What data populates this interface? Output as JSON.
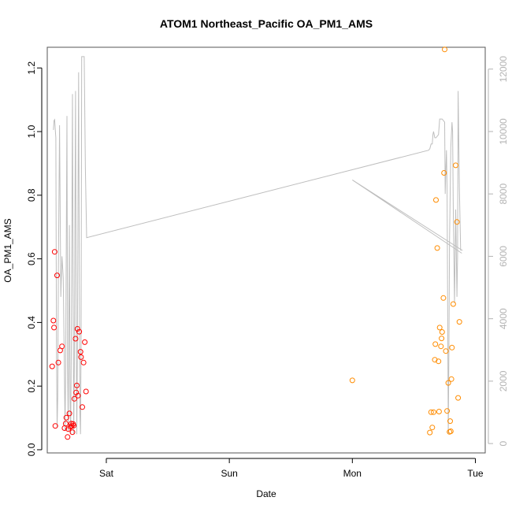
{
  "chart_data": {
    "type": "scatter",
    "title": "ATOM1 Northeast_Pacific OA_PM1_AMS",
    "xlabel": "Date",
    "ylabel": "OA_PM1_AMS",
    "x_ticks": [
      "Sat",
      "Sun",
      "Mon",
      "Tue"
    ],
    "x_tick_values": [
      1,
      2,
      3,
      4
    ],
    "xlim": [
      0.52,
      4.08
    ],
    "ylim": [
      -0.01,
      1.265
    ],
    "y_ticks": [
      0.0,
      0.2,
      0.4,
      0.6,
      0.8,
      1.0,
      1.2
    ],
    "y_tick_labels": [
      "0.0",
      "0.2",
      "0.4",
      "0.6",
      "0.8",
      "1.0",
      "1.2"
    ],
    "y2_ticks": [
      0,
      2000,
      4000,
      6000,
      8000,
      10000,
      12000
    ],
    "y2_tick_labels": [
      "0",
      "2000",
      "4000",
      "6000",
      "8000",
      "10000",
      "12000"
    ],
    "y2_lim": [
      -300,
      12700
    ],
    "grid": false,
    "colors": {
      "series1": "#ff0000",
      "series2": "#ff8c00",
      "altitude": "#bebebe",
      "frame": "#555555"
    },
    "series": [
      {
        "color": "#ff0000",
        "points": [
          [
            0.56,
            0.262
          ],
          [
            0.57,
            0.406
          ],
          [
            0.575,
            0.384
          ],
          [
            0.58,
            0.622
          ],
          [
            0.585,
            0.075
          ],
          [
            0.6,
            0.548
          ],
          [
            0.61,
            0.274
          ],
          [
            0.625,
            0.312
          ],
          [
            0.64,
            0.325
          ],
          [
            0.66,
            0.068
          ],
          [
            0.67,
            0.082
          ],
          [
            0.675,
            0.101
          ],
          [
            0.685,
            0.04
          ],
          [
            0.69,
            0.065
          ],
          [
            0.7,
            0.114
          ],
          [
            0.71,
            0.072
          ],
          [
            0.715,
            0.082
          ],
          [
            0.72,
            0.075
          ],
          [
            0.725,
            0.055
          ],
          [
            0.73,
            0.081
          ],
          [
            0.735,
            0.076
          ],
          [
            0.74,
            0.16
          ],
          [
            0.75,
            0.349
          ],
          [
            0.755,
            0.18
          ],
          [
            0.76,
            0.202
          ],
          [
            0.765,
            0.38
          ],
          [
            0.77,
            0.17
          ],
          [
            0.78,
            0.371
          ],
          [
            0.79,
            0.308
          ],
          [
            0.795,
            0.291
          ],
          [
            0.805,
            0.134
          ],
          [
            0.815,
            0.274
          ],
          [
            0.825,
            0.338
          ],
          [
            0.835,
            0.183
          ]
        ]
      },
      {
        "color": "#ff8c00",
        "points": [
          [
            3.0,
            0.218
          ],
          [
            3.63,
            0.054
          ],
          [
            3.64,
            0.118
          ],
          [
            3.65,
            0.07
          ],
          [
            3.66,
            0.118
          ],
          [
            3.67,
            0.283
          ],
          [
            3.675,
            0.332
          ],
          [
            3.68,
            0.785
          ],
          [
            3.69,
            0.634
          ],
          [
            3.7,
            0.278
          ],
          [
            3.705,
            0.12
          ],
          [
            3.71,
            0.384
          ],
          [
            3.72,
            0.325
          ],
          [
            3.725,
            0.35
          ],
          [
            3.73,
            0.37
          ],
          [
            3.74,
            0.477
          ],
          [
            3.745,
            0.87
          ],
          [
            3.75,
            1.258
          ],
          [
            3.76,
            0.31
          ],
          [
            3.77,
            0.122
          ],
          [
            3.78,
            0.21
          ],
          [
            3.79,
            0.056
          ],
          [
            3.795,
            0.09
          ],
          [
            3.8,
            0.058
          ],
          [
            3.805,
            0.222
          ],
          [
            3.81,
            0.321
          ],
          [
            3.82,
            0.458
          ],
          [
            3.84,
            0.894
          ],
          [
            3.85,
            0.716
          ],
          [
            3.86,
            0.163
          ],
          [
            3.87,
            0.402
          ]
        ]
      }
    ],
    "altitude_line": [
      [
        0.57,
        10050
      ],
      [
        0.575,
        10350
      ],
      [
        0.58,
        10380
      ],
      [
        0.585,
        10050
      ],
      [
        0.59,
        9800
      ],
      [
        0.595,
        3000
      ],
      [
        0.6,
        500
      ],
      [
        0.605,
        1500
      ],
      [
        0.61,
        5500
      ],
      [
        0.62,
        10200
      ],
      [
        0.63,
        4700
      ],
      [
        0.64,
        6000
      ],
      [
        0.65,
        5300
      ],
      [
        0.66,
        2000
      ],
      [
        0.665,
        400
      ],
      [
        0.67,
        2500
      ],
      [
        0.675,
        6600
      ],
      [
        0.68,
        10500
      ],
      [
        0.685,
        2500
      ],
      [
        0.69,
        400
      ],
      [
        0.695,
        3500
      ],
      [
        0.7,
        7000
      ],
      [
        0.705,
        1500
      ],
      [
        0.71,
        300
      ],
      [
        0.715,
        3000
      ],
      [
        0.72,
        6500
      ],
      [
        0.725,
        11200
      ],
      [
        0.73,
        5000
      ],
      [
        0.735,
        300
      ],
      [
        0.74,
        2500
      ],
      [
        0.745,
        7000
      ],
      [
        0.75,
        11300
      ],
      [
        0.755,
        4000
      ],
      [
        0.76,
        300
      ],
      [
        0.765,
        3000
      ],
      [
        0.77,
        7500
      ],
      [
        0.775,
        11900
      ],
      [
        0.78,
        6000
      ],
      [
        0.785,
        1000
      ],
      [
        0.79,
        300
      ],
      [
        0.795,
        3000
      ],
      [
        0.8,
        12400
      ],
      [
        0.82,
        12400
      ],
      [
        0.83,
        8800
      ],
      [
        0.84,
        6600
      ],
      [
        3.62,
        9400
      ],
      [
        3.63,
        9450
      ],
      [
        3.64,
        9600
      ],
      [
        3.65,
        9600
      ],
      [
        3.655,
        9900
      ],
      [
        3.66,
        10000
      ],
      [
        3.67,
        9800
      ],
      [
        3.68,
        9800
      ],
      [
        3.7,
        9900
      ],
      [
        3.71,
        10400
      ],
      [
        3.73,
        10400
      ],
      [
        3.75,
        10300
      ],
      [
        3.755,
        8000
      ],
      [
        3.76,
        8800
      ],
      [
        3.765,
        9400
      ],
      [
        3.77,
        8100
      ],
      [
        3.78,
        300
      ],
      [
        3.785,
        3000
      ],
      [
        3.79,
        6500
      ],
      [
        3.8,
        9500
      ],
      [
        3.81,
        10300
      ],
      [
        3.815,
        10000
      ],
      [
        3.82,
        7600
      ],
      [
        3.83,
        4500
      ],
      [
        3.84,
        7500
      ],
      [
        3.85,
        4700
      ],
      [
        3.855,
        6000
      ],
      [
        3.86,
        11300
      ],
      [
        3.87,
        8200
      ],
      [
        3.88,
        6200
      ],
      [
        3.89,
        6200
      ],
      [
        3.0,
        8450
      ],
      [
        3.89,
        6100
      ]
    ]
  }
}
